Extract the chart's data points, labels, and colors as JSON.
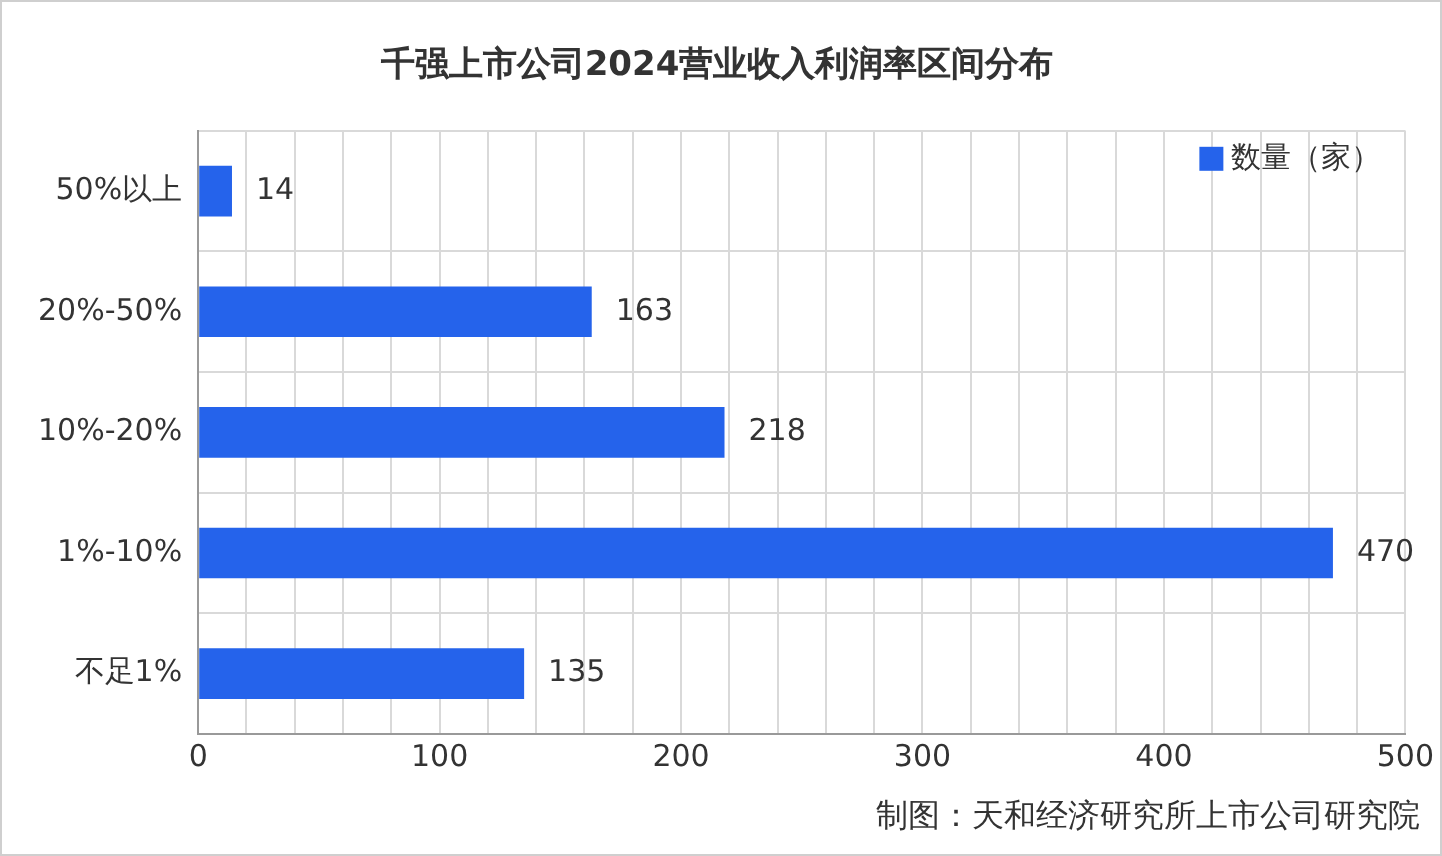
{
  "chart_data": {
    "type": "bar",
    "orientation": "horizontal",
    "title": "千强上市公司2024营业收入利润率区间分布",
    "categories": [
      "50%以上",
      "20%-50%",
      "10%-20%",
      "1%-10%",
      "不足1%"
    ],
    "series": [
      {
        "name": "数量（家）",
        "color": "#2563eb",
        "values": [
          14,
          163,
          218,
          470,
          135
        ]
      }
    ],
    "xlim": [
      0,
      500
    ],
    "xticks": [
      0,
      {
        "value": 20,
        "label": null
      },
      {
        "value": 40,
        "label": null
      },
      {
        "value": 60,
        "label": null
      },
      {
        "value": 80,
        "label": null
      },
      100,
      {
        "value": 120,
        "label": null
      },
      {
        "value": 140,
        "label": null
      },
      {
        "value": 160,
        "label": null
      },
      {
        "value": 180,
        "label": null
      },
      200,
      {
        "value": 220,
        "label": null
      },
      {
        "value": 240,
        "label": null
      },
      {
        "value": 260,
        "label": null
      },
      {
        "value": 280,
        "label": null
      },
      300,
      {
        "value": 320,
        "label": null
      },
      {
        "value": 340,
        "label": null
      },
      {
        "value": 360,
        "label": null
      },
      {
        "value": 380,
        "label": null
      },
      400,
      {
        "value": 420,
        "label": null
      },
      {
        "value": 440,
        "label": null
      },
      {
        "value": 460,
        "label": null
      },
      {
        "value": 480,
        "label": null
      },
      500
    ],
    "grid": true,
    "legend": "top right",
    "data_labels": true,
    "annotations": [
      "制图：天和经济研究所上市公司研究院"
    ]
  }
}
